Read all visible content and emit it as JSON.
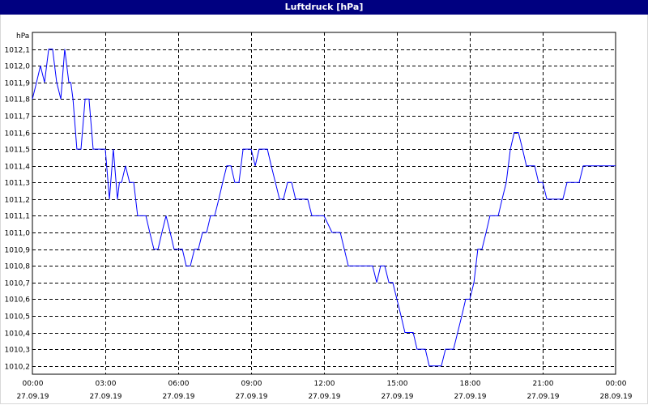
{
  "window": {
    "title": "Luftdruck [hPa]"
  },
  "colors": {
    "titlebar": "#000080",
    "line": "#0000ff",
    "grid": "#000000",
    "background": "#ffffff"
  },
  "chart_data": {
    "type": "line",
    "title": "Luftdruck [hPa]",
    "ylabel": "hPa",
    "xlabel": "",
    "ylim": [
      1010.15,
      1012.2
    ],
    "yticks": [
      1010.2,
      1010.3,
      1010.4,
      1010.5,
      1010.6,
      1010.7,
      1010.8,
      1010.9,
      1011.0,
      1011.1,
      1011.2,
      1011.3,
      1011.4,
      1011.5,
      1011.6,
      1011.7,
      1011.8,
      1011.9,
      1012.0,
      1012.1
    ],
    "ytick_labels": [
      "1010,2",
      "1010,3",
      "1010,4",
      "1010,5",
      "1010,6",
      "1010,7",
      "1010,8",
      "1010,9",
      "1011,0",
      "1011,1",
      "1011,2",
      "1011,3",
      "1011,4",
      "1011,5",
      "1011,6",
      "1011,7",
      "1011,8",
      "1011,9",
      "1012,0",
      "1012,1"
    ],
    "xlim": [
      0,
      24
    ],
    "xticks": [
      {
        "hour": 0,
        "time": "00:00",
        "date": "27.09.19"
      },
      {
        "hour": 3,
        "time": "03:00",
        "date": "27.09.19"
      },
      {
        "hour": 6,
        "time": "06:00",
        "date": "27.09.19"
      },
      {
        "hour": 9,
        "time": "09:00",
        "date": "27.09.19"
      },
      {
        "hour": 12,
        "time": "12:00",
        "date": "27.09.19"
      },
      {
        "hour": 15,
        "time": "15:00",
        "date": "27.09.19"
      },
      {
        "hour": 18,
        "time": "18:00",
        "date": "27.09.19"
      },
      {
        "hour": 21,
        "time": "21:00",
        "date": "27.09.19"
      },
      {
        "hour": 24,
        "time": "00:00",
        "date": "28.09.19"
      }
    ],
    "grid": true,
    "series": [
      {
        "x": [
          0.0,
          0.17,
          0.33,
          0.5,
          0.67,
          0.83,
          1.0,
          1.17,
          1.33,
          1.5,
          1.58,
          1.67,
          1.83,
          2.0,
          2.17,
          2.33,
          2.5,
          2.67,
          2.83,
          3.0,
          3.17,
          3.33,
          3.5,
          3.58,
          3.67,
          3.83,
          4.0,
          4.17,
          4.33,
          4.5,
          4.67,
          4.83,
          5.0,
          5.17,
          5.33,
          5.5,
          5.67,
          5.83,
          6.0,
          6.17,
          6.33,
          6.5,
          6.67,
          6.83,
          7.0,
          7.17,
          7.33,
          7.5,
          7.67,
          7.83,
          8.0,
          8.17,
          8.33,
          8.5,
          8.67,
          8.83,
          9.0,
          9.17,
          9.33,
          9.5,
          9.67,
          9.83,
          10.0,
          10.17,
          10.33,
          10.5,
          10.67,
          10.83,
          11.0,
          11.17,
          11.33,
          11.5,
          11.67,
          11.83,
          12.0,
          12.33,
          12.67,
          13.0,
          13.33,
          13.67,
          14.0,
          14.17,
          14.33,
          14.5,
          14.67,
          14.83,
          15.0,
          15.17,
          15.33,
          15.5,
          15.67,
          15.83,
          16.0,
          16.17,
          16.33,
          16.5,
          16.67,
          16.83,
          17.0,
          17.17,
          17.33,
          17.5,
          17.67,
          17.83,
          18.0,
          18.17,
          18.33,
          18.5,
          18.67,
          18.83,
          19.0,
          19.17,
          19.33,
          19.5,
          19.67,
          19.83,
          20.0,
          20.17,
          20.33,
          20.5,
          20.67,
          20.83,
          21.0,
          21.17,
          21.33,
          21.5,
          21.67,
          21.83,
          22.0,
          22.17,
          22.33,
          22.5,
          22.67,
          22.83,
          23.0,
          23.17,
          23.33,
          23.5,
          23.67,
          23.83,
          24.0
        ],
        "values": [
          1011.8,
          1011.9,
          1012.0,
          1011.9,
          1012.1,
          1012.1,
          1011.9,
          1011.8,
          1012.1,
          1011.9,
          1011.9,
          1011.8,
          1011.5,
          1011.5,
          1011.8,
          1011.8,
          1011.5,
          1011.5,
          1011.5,
          1011.5,
          1011.2,
          1011.5,
          1011.2,
          1011.3,
          1011.3,
          1011.4,
          1011.3,
          1011.3,
          1011.1,
          1011.1,
          1011.1,
          1011.0,
          1010.9,
          1010.9,
          1011.0,
          1011.1,
          1011.0,
          1010.9,
          1010.9,
          1010.9,
          1010.8,
          1010.8,
          1010.9,
          1010.9,
          1011.0,
          1011.0,
          1011.1,
          1011.1,
          1011.2,
          1011.3,
          1011.4,
          1011.4,
          1011.3,
          1011.3,
          1011.5,
          1011.5,
          1011.5,
          1011.4,
          1011.5,
          1011.5,
          1011.5,
          1011.4,
          1011.3,
          1011.2,
          1011.2,
          1011.3,
          1011.3,
          1011.2,
          1011.2,
          1011.2,
          1011.2,
          1011.1,
          1011.1,
          1011.1,
          1011.1,
          1011.0,
          1011.0,
          1010.8,
          1010.8,
          1010.8,
          1010.8,
          1010.7,
          1010.8,
          1010.8,
          1010.7,
          1010.7,
          1010.6,
          1010.5,
          1010.4,
          1010.4,
          1010.4,
          1010.3,
          1010.3,
          1010.3,
          1010.2,
          1010.2,
          1010.2,
          1010.2,
          1010.3,
          1010.3,
          1010.3,
          1010.4,
          1010.5,
          1010.6,
          1010.6,
          1010.7,
          1010.9,
          1010.9,
          1011.0,
          1011.1,
          1011.1,
          1011.1,
          1011.2,
          1011.3,
          1011.5,
          1011.6,
          1011.6,
          1011.5,
          1011.4,
          1011.4,
          1011.4,
          1011.3,
          1011.3,
          1011.2,
          1011.2,
          1011.2,
          1011.2,
          1011.2,
          1011.3,
          1011.3,
          1011.3,
          1011.3,
          1011.4,
          1011.4,
          1011.4,
          1011.4,
          1011.4,
          1011.4,
          1011.4,
          1011.4,
          1011.4
        ]
      }
    ]
  }
}
